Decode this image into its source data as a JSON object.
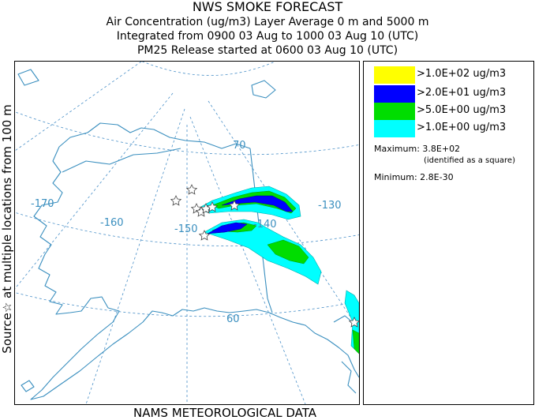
{
  "header": {
    "title": "NWS SMOKE FORECAST",
    "line2": "Air Concentration (ug/m3) Layer Average    0 m and  5000 m",
    "line3": "Integrated from 0900 03 Aug to 1000 03 Aug 10 (UTC)",
    "line4": "PM25 Release started at 0600 03 Aug 10 (UTC)"
  },
  "side_label": "Source☆  at multiple locations   from   100 m",
  "bottom_label": "NAMS METEOROLOGICAL DATA",
  "map": {
    "longitude_labels": [
      "-170",
      "-160",
      "-150",
      "-140",
      "-130"
    ],
    "latitude_labels": [
      "70",
      "60"
    ],
    "source_marker": "star-icon"
  },
  "legend": {
    "items": [
      {
        "label": ">1.0E+02 ug/m3",
        "color": "#ffff00"
      },
      {
        "label": ">2.0E+01 ug/m3",
        "color": "#0000ff"
      },
      {
        "label": ">5.0E+00 ug/m3",
        "color": "#00dd00"
      },
      {
        "label": ">1.0E+00 ug/m3",
        "color": "#00ffff"
      }
    ],
    "maximum_label": "Maximum: 3.8E+02",
    "maximum_note": "(identified as a square)",
    "minimum_label": "Minimum: 2.8E-30"
  }
}
